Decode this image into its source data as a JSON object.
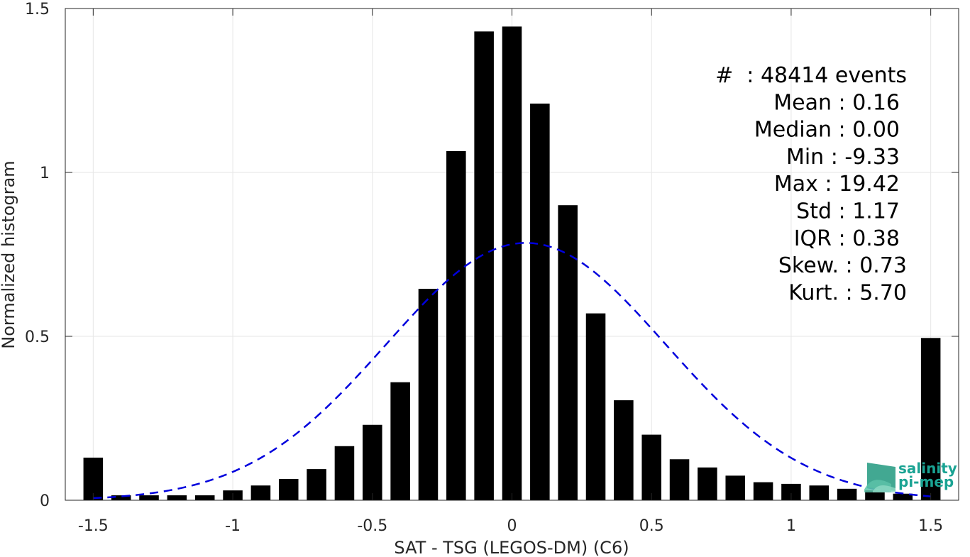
{
  "chart_data": {
    "type": "bar",
    "xlabel": "SAT - TSG (LEGOS-DM) (C6)",
    "ylabel": "Normalized histogram",
    "xlim": [
      -1.6,
      1.6
    ],
    "ylim": [
      0,
      1.5
    ],
    "xticks": [
      -1.5,
      -1,
      -0.5,
      0,
      0.5,
      1,
      1.5
    ],
    "xtick_labels": [
      "-1.5",
      "-1",
      "-0.5",
      "0",
      "0.5",
      "1",
      "1.5"
    ],
    "yticks": [
      0,
      0.5,
      1,
      1.5
    ],
    "ytick_labels": [
      "0",
      "0.5",
      "1",
      "1.5"
    ],
    "grid": true,
    "bin_centers": [
      -1.5,
      -1.4,
      -1.3,
      -1.2,
      -1.1,
      -1.0,
      -0.9,
      -0.8,
      -0.7,
      -0.6,
      -0.5,
      -0.4,
      -0.3,
      -0.2,
      -0.1,
      0.0,
      0.1,
      0.2,
      0.3,
      0.4,
      0.5,
      0.6,
      0.7,
      0.8,
      0.9,
      1.0,
      1.1,
      1.2,
      1.3,
      1.4,
      1.5
    ],
    "values": [
      0.13,
      0.015,
      0.015,
      0.015,
      0.015,
      0.03,
      0.045,
      0.065,
      0.095,
      0.165,
      0.23,
      0.36,
      0.645,
      1.065,
      1.43,
      1.445,
      1.21,
      0.9,
      0.57,
      0.305,
      0.2,
      0.125,
      0.1,
      0.075,
      0.055,
      0.05,
      0.045,
      0.035,
      0.03,
      0.02,
      0.495
    ],
    "bar_color": "#000000",
    "fit_curve": {
      "style": "dashed",
      "color": "#0000dd",
      "type": "normal",
      "mean": 0.05,
      "peak": 0.785,
      "sigma": 0.5
    },
    "stats_lines": [
      "#  : 48414 events",
      "Mean : 0.16",
      "Median : 0.00",
      "Min : -9.33",
      "Max : 19.42",
      "Std : 1.17",
      "IQR : 0.38",
      "Skew. : 0.73",
      "Kurt. : 5.70"
    ]
  },
  "logo": {
    "line1": "salinity",
    "line2": "pi-mep",
    "color": "#1aa393"
  }
}
